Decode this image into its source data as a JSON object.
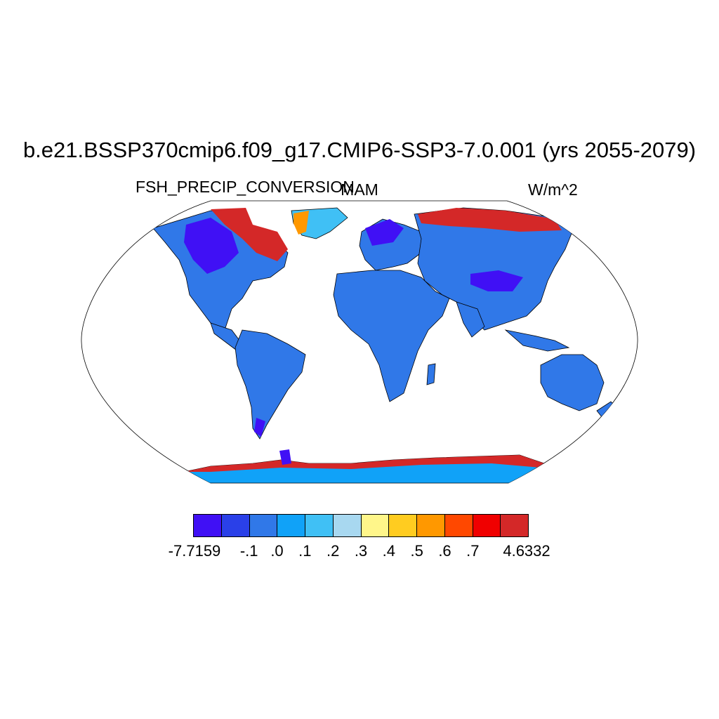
{
  "title": "b.e21.BSSP370cmip6.f09_g17.CMIP6-SSP3-7.0.001 (yrs 2055-2079)",
  "variable": "FSH_PRECIP_CONVERSION",
  "season": "MAM",
  "units": "W/m^2",
  "colorbar": {
    "colors": [
      "#4010f5",
      "#2a40e8",
      "#3078e8",
      "#10a2f8",
      "#40c0f5",
      "#a8d8f0",
      "#fff68a",
      "#ffcc20",
      "#ff9800",
      "#ff4800",
      "#f00000",
      "#d42828"
    ],
    "labels": [
      "-7.7159",
      "-.1",
      ".0",
      ".1",
      ".2",
      ".3",
      ".4",
      ".5",
      ".6",
      ".7",
      "4.6332"
    ]
  },
  "map_colors": {
    "land_default": "#3078e8",
    "antarctica": "#10a2f8",
    "high_lat_warm": "#d42828",
    "cold_interior": "#4010f5",
    "transition": "#ffcc20"
  }
}
